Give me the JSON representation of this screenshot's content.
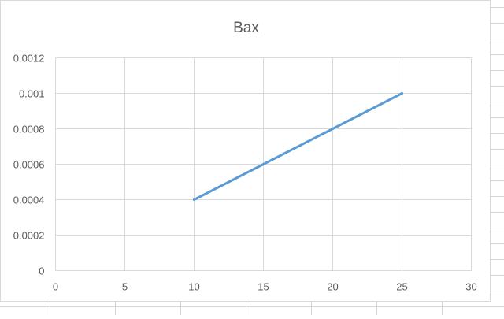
{
  "chart_data": {
    "type": "line",
    "title": "Bax",
    "xlabel": "",
    "ylabel": "",
    "xlim": [
      0,
      30
    ],
    "ylim": [
      0,
      0.0012
    ],
    "x_ticks": [
      "0",
      "5",
      "10",
      "15",
      "20",
      "25",
      "30"
    ],
    "y_ticks": [
      "0",
      "0.0002",
      "0.0004",
      "0.0006",
      "0.0008",
      "0.001",
      "0.0012"
    ],
    "grid": true,
    "legend": "none",
    "series": [
      {
        "color": "#5b9bd5",
        "x": [
          10,
          15,
          20,
          25
        ],
        "y": [
          0.0004,
          0.0006,
          0.0008,
          0.001
        ]
      }
    ]
  }
}
